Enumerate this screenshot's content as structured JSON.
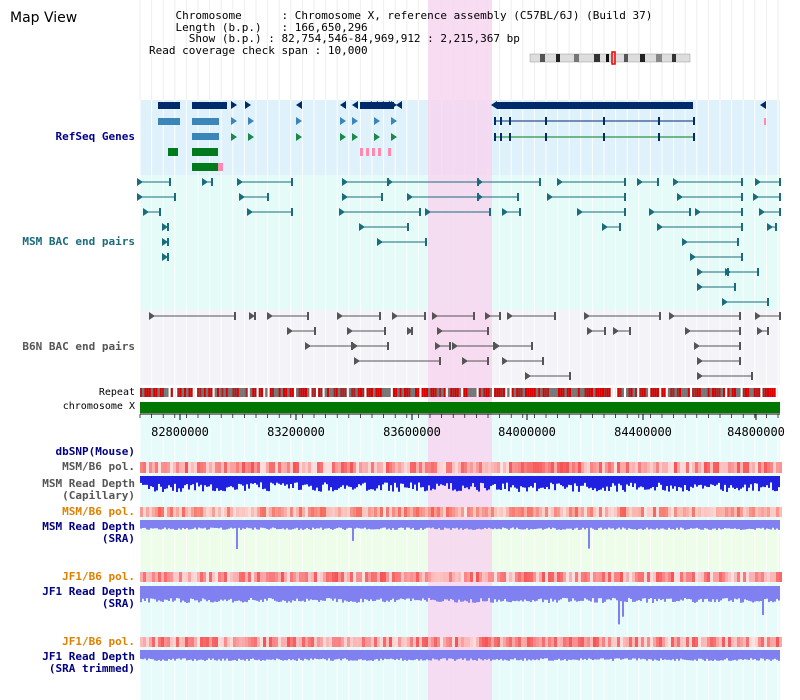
{
  "window": {
    "title": "Map View"
  },
  "info": {
    "chromosome_label": "Chromosome",
    "chromosome_value": "Chromosome X, reference assembly (C57BL/6J) (Build 37)",
    "length_label": "Length (b.p.)",
    "length_value": "166,650,296",
    "show_label": "Show (b.p.)",
    "show_value": "82,754,546-84,969,912 : 2,215,367 bp",
    "coverage_label": "Read coverage check span",
    "coverage_value": "10,000"
  },
  "tracks": {
    "refseq": "RefSeq Genes",
    "msm_bac": "MSM BAC end pairs",
    "b6n_bac": "B6N BAC end pairs",
    "repeat": "Repeat",
    "chromosome": "chromosome X",
    "dbsnp": "dbSNP(Mouse)",
    "msm_pol1": "MSM/B6 pol.",
    "msm_depth_cap1": "MSM Read Depth",
    "msm_depth_cap2": "(Capillary)",
    "msm_pol2": "MSM/B6 pol.",
    "msm_depth_sra1": "MSM Read Depth",
    "msm_depth_sra2": "(SRA)",
    "jf1_pol1": "JF1/B6 pol.",
    "jf1_depth_sra1": "JF1 Read Depth",
    "jf1_depth_sra2": "(SRA)",
    "jf1_pol2": "JF1/B6 pol.",
    "jf1_trim1": "JF1 Read Depth",
    "jf1_trim2": "(SRA trimmed)"
  },
  "axis": {
    "ticks": [
      "82800000",
      "83200000",
      "83600000",
      "84000000",
      "84400000",
      "84800000"
    ]
  },
  "colors": {
    "highlight": "#f7d6f0",
    "refseq_bg": "#dff1fb",
    "msm_bac_bg": "#e4fbf8",
    "b6n_bg": "#f4f4f8",
    "chromosome": "#007700",
    "gene_dark": "#002a6a",
    "gene_mid": "#3a86b8",
    "gene_green": "#007a1a",
    "bac_teal": "#1a6b7b",
    "read_depth_cap": "#2020e0",
    "read_depth_sra": "#8080f0"
  }
}
